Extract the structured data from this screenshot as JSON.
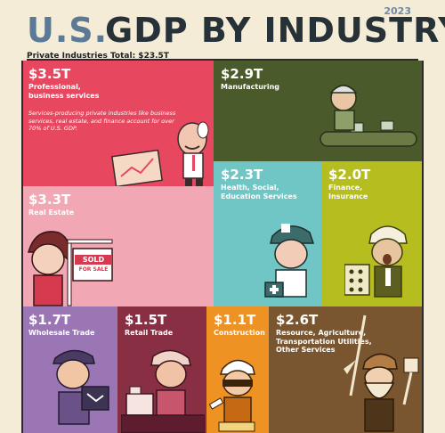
{
  "header": {
    "title_prefix": "U.S.",
    "title_main": "GDP BY INDUSTRY",
    "year": "2023",
    "subtotal": "Private Industries Total: $23.5T"
  },
  "colors": {
    "prof_services": "#e8485f",
    "manufacturing": "#4a5a2a",
    "health": "#6fc6c4",
    "finance": "#b6bd1e",
    "real_estate": "#f2a7b4",
    "wholesale": "#9a77b4",
    "retail": "#892f44",
    "construction": "#ee9223",
    "resource": "#7a5630"
  },
  "chart_data": {
    "type": "treemap",
    "title": "U.S. GDP BY INDUSTRY",
    "year": "2023",
    "total_label": "Private Industries Total: $23.5T",
    "unit": "trillions USD",
    "items": [
      {
        "name": "Professional, business services",
        "value": 3.5,
        "value_label": "$3.5T",
        "color": "#e8485f"
      },
      {
        "name": "Manufacturing",
        "value": 2.9,
        "value_label": "$2.9T",
        "color": "#4a5a2a"
      },
      {
        "name": "Health, Social, Education Services",
        "value": 2.3,
        "value_label": "$2.3T",
        "color": "#6fc6c4"
      },
      {
        "name": "Finance, Insurance",
        "value": 2.0,
        "value_label": "$2.0T",
        "color": "#b6bd1e"
      },
      {
        "name": "Real Estate",
        "value": 3.3,
        "value_label": "$3.3T",
        "color": "#f2a7b4"
      },
      {
        "name": "Wholesale Trade",
        "value": 1.7,
        "value_label": "$1.7T",
        "color": "#9a77b4"
      },
      {
        "name": "Retail Trade",
        "value": 1.5,
        "value_label": "$1.5T",
        "color": "#892f44"
      },
      {
        "name": "Construction",
        "value": 1.1,
        "value_label": "$1.1T",
        "color": "#ee9223"
      },
      {
        "name": "Resource, Agriculture, Transportation Utilities, Other Services",
        "value": 2.6,
        "value_label": "$2.6T",
        "color": "#7a5630"
      }
    ]
  },
  "tiles": {
    "prof": {
      "value": "$3.5T",
      "label_1": "Professional,",
      "label_2": "business services",
      "note": "Services-producing private industries like business services, real estate, and finance account for over 70% of U.S. GDP."
    },
    "manu": {
      "value": "$2.9T",
      "label_1": "Manufacturing"
    },
    "health": {
      "value": "$2.3T",
      "label_1": "Health, Social,",
      "label_2": "Education Services"
    },
    "finance": {
      "value": "$2.0T",
      "label_1": "Finance,",
      "label_2": "Insurance"
    },
    "realestate": {
      "value": "$3.3T",
      "label_1": "Real Estate",
      "sign_text": "SOLD",
      "sign_text_2": "FOR SALE"
    },
    "wholesale": {
      "value": "$1.7T",
      "label_1": "Wholesale Trade"
    },
    "retail": {
      "value": "$1.5T",
      "label_1": "Retail Trade"
    },
    "construction": {
      "value": "$1.1T",
      "label_1": "Construction"
    },
    "resource": {
      "value": "$2.6T",
      "label_1": "Resource, Agriculture,",
      "label_2": "Transportation Utilities,",
      "label_3": "Other Services"
    }
  }
}
